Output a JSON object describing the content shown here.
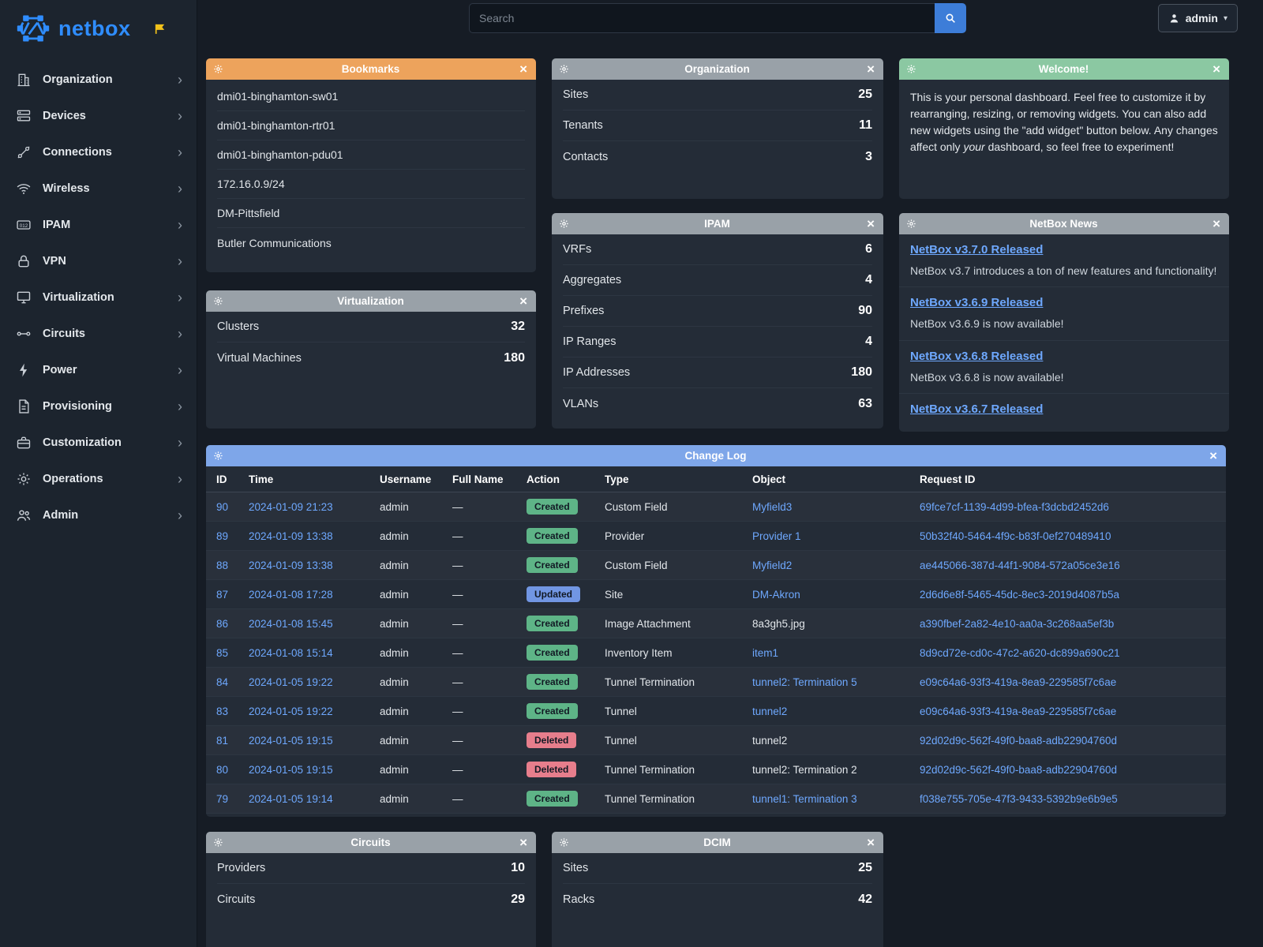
{
  "colors": {
    "accent_blue": "#2f8dff",
    "link": "#6ea8fe",
    "header_orange": "#eda35c",
    "header_gray": "#99a1a8",
    "header_green": "#8bc8a2",
    "header_blue": "#7ea6e9",
    "badge_created": "#5eb487",
    "badge_updated": "#7196e3",
    "badge_deleted": "#e77e8c"
  },
  "brand": {
    "name": "netbox"
  },
  "topbar": {
    "search_placeholder": "Search",
    "user": "admin"
  },
  "sidebar": {
    "items": [
      {
        "label": "Organization",
        "icon": "building"
      },
      {
        "label": "Devices",
        "icon": "server"
      },
      {
        "label": "Connections",
        "icon": "connections"
      },
      {
        "label": "Wireless",
        "icon": "wifi"
      },
      {
        "label": "IPAM",
        "icon": "counter"
      },
      {
        "label": "VPN",
        "icon": "lock"
      },
      {
        "label": "Virtualization",
        "icon": "monitor"
      },
      {
        "label": "Circuits",
        "icon": "transit"
      },
      {
        "label": "Power",
        "icon": "bolt"
      },
      {
        "label": "Provisioning",
        "icon": "document"
      },
      {
        "label": "Customization",
        "icon": "toolbox"
      },
      {
        "label": "Operations",
        "icon": "gears"
      },
      {
        "label": "Admin",
        "icon": "users"
      }
    ]
  },
  "widgets": {
    "bookmarks": {
      "title": "Bookmarks",
      "items": [
        "dmi01-binghamton-sw01",
        "dmi01-binghamton-rtr01",
        "dmi01-binghamton-pdu01",
        "172.16.0.9/24",
        "DM-Pittsfield",
        "Butler Communications"
      ]
    },
    "organization": {
      "title": "Organization",
      "stats": [
        {
          "label": "Sites",
          "value": "25"
        },
        {
          "label": "Tenants",
          "value": "11"
        },
        {
          "label": "Contacts",
          "value": "3"
        }
      ]
    },
    "welcome": {
      "title": "Welcome!",
      "text_before": "This is your personal dashboard. Feel free to customize it by rearranging, resizing, or removing widgets. You can also add new widgets using the \"add widget\" button below. Any changes affect only ",
      "text_emphasis": "your",
      "text_after": " dashboard, so feel free to experiment!"
    },
    "ipam": {
      "title": "IPAM",
      "stats": [
        {
          "label": "VRFs",
          "value": "6"
        },
        {
          "label": "Aggregates",
          "value": "4"
        },
        {
          "label": "Prefixes",
          "value": "90"
        },
        {
          "label": "IP Ranges",
          "value": "4"
        },
        {
          "label": "IP Addresses",
          "value": "180"
        },
        {
          "label": "VLANs",
          "value": "63"
        }
      ]
    },
    "news": {
      "title": "NetBox News",
      "items": [
        {
          "title": "NetBox v3.7.0 Released",
          "text": "NetBox v3.7 introduces a ton of new features and functionality!"
        },
        {
          "title": "NetBox v3.6.9 Released",
          "text": "NetBox v3.6.9 is now available!"
        },
        {
          "title": "NetBox v3.6.8 Released",
          "text": "NetBox v3.6.8 is now available!"
        },
        {
          "title": "NetBox v3.6.7 Released",
          "text": ""
        }
      ]
    },
    "virtualization": {
      "title": "Virtualization",
      "stats": [
        {
          "label": "Clusters",
          "value": "32"
        },
        {
          "label": "Virtual Machines",
          "value": "180"
        }
      ]
    },
    "changelog": {
      "title": "Change Log",
      "columns": [
        "ID",
        "Time",
        "Username",
        "Full Name",
        "Action",
        "Type",
        "Object",
        "Request ID"
      ],
      "rows": [
        {
          "id": "90",
          "time": "2024-01-09 21:23",
          "username": "admin",
          "full_name": "—",
          "action": "Created",
          "type": "Custom Field",
          "object": "Myfield3",
          "object_link": true,
          "request_id": "69fce7cf-1139-4d99-bfea-f3dcbd2452d6"
        },
        {
          "id": "89",
          "time": "2024-01-09 13:38",
          "username": "admin",
          "full_name": "—",
          "action": "Created",
          "type": "Provider",
          "object": "Provider 1",
          "object_link": true,
          "request_id": "50b32f40-5464-4f9c-b83f-0ef270489410"
        },
        {
          "id": "88",
          "time": "2024-01-09 13:38",
          "username": "admin",
          "full_name": "—",
          "action": "Created",
          "type": "Custom Field",
          "object": "Myfield2",
          "object_link": true,
          "request_id": "ae445066-387d-44f1-9084-572a05ce3e16"
        },
        {
          "id": "87",
          "time": "2024-01-08 17:28",
          "username": "admin",
          "full_name": "—",
          "action": "Updated",
          "type": "Site",
          "object": "DM-Akron",
          "object_link": true,
          "request_id": "2d6d6e8f-5465-45dc-8ec3-2019d4087b5a"
        },
        {
          "id": "86",
          "time": "2024-01-08 15:45",
          "username": "admin",
          "full_name": "—",
          "action": "Created",
          "type": "Image Attachment",
          "object": "8a3gh5.jpg",
          "object_link": false,
          "request_id": "a390fbef-2a82-4e10-aa0a-3c268aa5ef3b"
        },
        {
          "id": "85",
          "time": "2024-01-08 15:14",
          "username": "admin",
          "full_name": "—",
          "action": "Created",
          "type": "Inventory Item",
          "object": "item1",
          "object_link": true,
          "request_id": "8d9cd72e-cd0c-47c2-a620-dc899a690c21"
        },
        {
          "id": "84",
          "time": "2024-01-05 19:22",
          "username": "admin",
          "full_name": "—",
          "action": "Created",
          "type": "Tunnel Termination",
          "object": "tunnel2: Termination 5",
          "object_link": true,
          "request_id": "e09c64a6-93f3-419a-8ea9-229585f7c6ae"
        },
        {
          "id": "83",
          "time": "2024-01-05 19:22",
          "username": "admin",
          "full_name": "—",
          "action": "Created",
          "type": "Tunnel",
          "object": "tunnel2",
          "object_link": true,
          "request_id": "e09c64a6-93f3-419a-8ea9-229585f7c6ae"
        },
        {
          "id": "81",
          "time": "2024-01-05 19:15",
          "username": "admin",
          "full_name": "—",
          "action": "Deleted",
          "type": "Tunnel",
          "object": "tunnel2",
          "object_link": false,
          "request_id": "92d02d9c-562f-49f0-baa8-adb22904760d"
        },
        {
          "id": "80",
          "time": "2024-01-05 19:15",
          "username": "admin",
          "full_name": "—",
          "action": "Deleted",
          "type": "Tunnel Termination",
          "object": "tunnel2: Termination 2",
          "object_link": false,
          "request_id": "92d02d9c-562f-49f0-baa8-adb22904760d"
        },
        {
          "id": "79",
          "time": "2024-01-05 19:14",
          "username": "admin",
          "full_name": "—",
          "action": "Created",
          "type": "Tunnel Termination",
          "object": "tunnel1: Termination 3",
          "object_link": true,
          "request_id": "f038e755-705e-47f3-9433-5392b9e6b9e5"
        }
      ]
    },
    "circuits": {
      "title": "Circuits",
      "stats": [
        {
          "label": "Providers",
          "value": "10"
        },
        {
          "label": "Circuits",
          "value": "29"
        }
      ]
    },
    "dcim": {
      "title": "DCIM",
      "stats": [
        {
          "label": "Sites",
          "value": "25"
        },
        {
          "label": "Racks",
          "value": "42"
        }
      ]
    }
  }
}
